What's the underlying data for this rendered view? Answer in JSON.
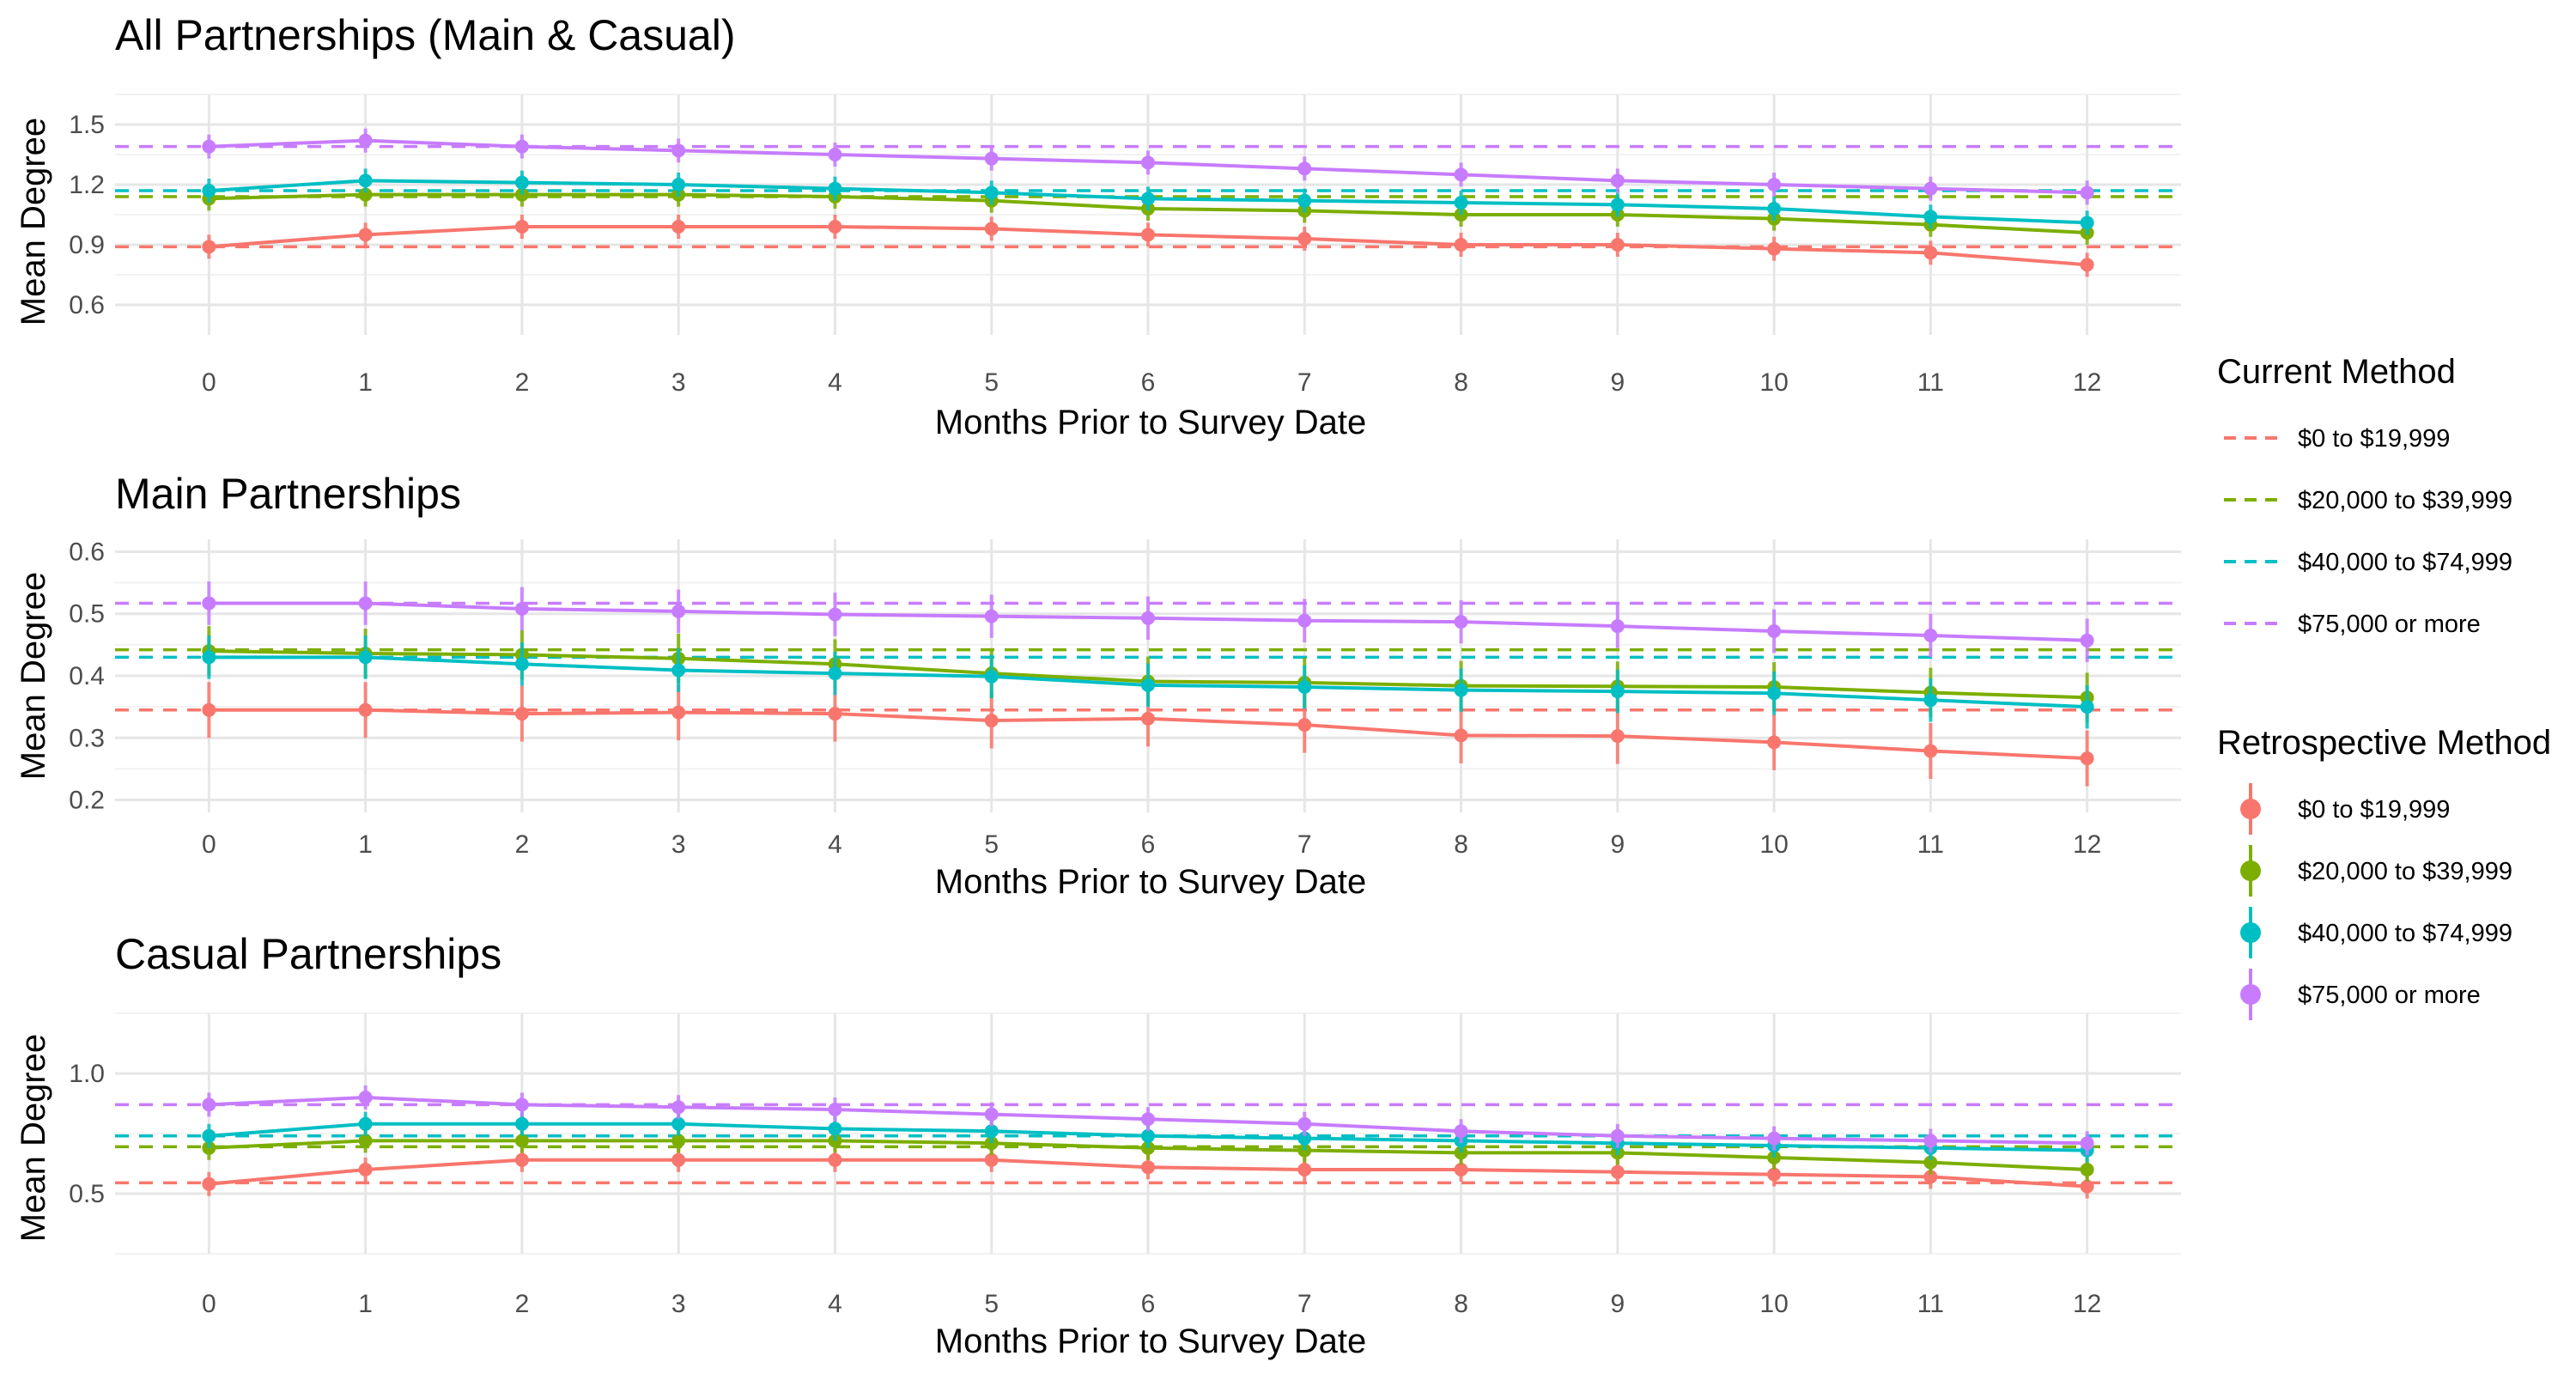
{
  "colors": {
    "$0 to $19,999": "#F8766D",
    "$20,000 to $39,999": "#7CAE00",
    "$40,000 to $74,999": "#00BFC4",
    "$75,000 or more": "#C77CFF"
  },
  "legend": {
    "current_title": "Current Method",
    "retro_title": "Retrospective Method",
    "groups": [
      "$0 to $19,999",
      "$20,000 to $39,999",
      "$40,000 to $74,999",
      "$75,000 or more"
    ]
  },
  "chart_data": [
    {
      "type": "line",
      "title": "All Partnerships (Main & Casual)",
      "xlabel": "Months Prior to Survey Date",
      "ylabel": "Mean Degree",
      "x": [
        0,
        1,
        2,
        3,
        4,
        5,
        6,
        7,
        8,
        9,
        10,
        11,
        12
      ],
      "ylim": [
        0.45,
        1.65
      ],
      "yticks": [
        0.6,
        0.9,
        1.2,
        1.5
      ],
      "ytick_labels": [
        "0.6",
        "0.9",
        "1.2",
        "1.5"
      ],
      "current": [
        {
          "name": "$0 to $19,999",
          "value": 0.89
        },
        {
          "name": "$20,000 to $39,999",
          "value": 1.14
        },
        {
          "name": "$40,000 to $74,999",
          "value": 1.17
        },
        {
          "name": "$75,000 or more",
          "value": 1.39
        }
      ],
      "series": [
        {
          "name": "$0 to $19,999",
          "values": [
            0.89,
            0.95,
            0.99,
            0.99,
            0.99,
            0.98,
            0.95,
            0.93,
            0.9,
            0.9,
            0.88,
            0.86,
            0.8
          ],
          "err": 0.06
        },
        {
          "name": "$20,000 to $39,999",
          "values": [
            1.13,
            1.15,
            1.15,
            1.15,
            1.14,
            1.12,
            1.08,
            1.07,
            1.05,
            1.05,
            1.03,
            1.0,
            0.96
          ],
          "err": 0.06
        },
        {
          "name": "$40,000 to $74,999",
          "values": [
            1.17,
            1.22,
            1.21,
            1.2,
            1.18,
            1.16,
            1.13,
            1.12,
            1.11,
            1.1,
            1.08,
            1.04,
            1.01
          ],
          "err": 0.06
        },
        {
          "name": "$75,000 or more",
          "values": [
            1.39,
            1.42,
            1.39,
            1.37,
            1.35,
            1.33,
            1.31,
            1.28,
            1.25,
            1.22,
            1.2,
            1.18,
            1.16
          ],
          "err": 0.06
        }
      ]
    },
    {
      "type": "line",
      "title": "Main Partnerships",
      "xlabel": "Months Prior to Survey Date",
      "ylabel": "Mean Degree",
      "x": [
        0,
        1,
        2,
        3,
        4,
        5,
        6,
        7,
        8,
        9,
        10,
        11,
        12
      ],
      "ylim": [
        0.18,
        0.62
      ],
      "yticks": [
        0.2,
        0.3,
        0.4,
        0.5,
        0.6
      ],
      "ytick_labels": [
        "0.2",
        "0.3",
        "0.4",
        "0.5",
        "0.6"
      ],
      "current": [
        {
          "name": "$0 to $19,999",
          "value": 0.345
        },
        {
          "name": "$20,000 to $39,999",
          "value": 0.442
        },
        {
          "name": "$40,000 to $74,999",
          "value": 0.43
        },
        {
          "name": "$75,000 or more",
          "value": 0.517
        }
      ],
      "series": [
        {
          "name": "$0 to $19,999",
          "values": [
            0.345,
            0.345,
            0.339,
            0.341,
            0.339,
            0.328,
            0.331,
            0.321,
            0.304,
            0.303,
            0.293,
            0.279,
            0.267
          ],
          "err": 0.045
        },
        {
          "name": "$20,000 to $39,999",
          "values": [
            0.44,
            0.436,
            0.434,
            0.428,
            0.419,
            0.404,
            0.391,
            0.389,
            0.384,
            0.383,
            0.382,
            0.373,
            0.365
          ],
          "err": 0.04
        },
        {
          "name": "$40,000 to $74,999",
          "values": [
            0.43,
            0.43,
            0.419,
            0.409,
            0.404,
            0.399,
            0.385,
            0.382,
            0.377,
            0.375,
            0.372,
            0.361,
            0.35
          ],
          "err": 0.035
        },
        {
          "name": "$75,000 or more",
          "values": [
            0.517,
            0.517,
            0.508,
            0.504,
            0.499,
            0.496,
            0.493,
            0.489,
            0.487,
            0.48,
            0.472,
            0.465,
            0.457
          ],
          "err": 0.035
        }
      ]
    },
    {
      "type": "line",
      "title": "Casual Partnerships",
      "xlabel": "Months Prior to Survey Date",
      "ylabel": "Mean Degree",
      "x": [
        0,
        1,
        2,
        3,
        4,
        5,
        6,
        7,
        8,
        9,
        10,
        11,
        12
      ],
      "ylim": [
        0.25,
        1.25
      ],
      "yticks": [
        0.5,
        1.0
      ],
      "ytick_labels": [
        "0.5",
        "1.0"
      ],
      "current": [
        {
          "name": "$0 to $19,999",
          "value": 0.545
        },
        {
          "name": "$20,000 to $39,999",
          "value": 0.695
        },
        {
          "name": "$40,000 to $74,999",
          "value": 0.74
        },
        {
          "name": "$75,000 or more",
          "value": 0.87
        }
      ],
      "series": [
        {
          "name": "$0 to $19,999",
          "values": [
            0.54,
            0.6,
            0.64,
            0.64,
            0.64,
            0.64,
            0.61,
            0.6,
            0.6,
            0.59,
            0.58,
            0.57,
            0.53
          ],
          "err": 0.05
        },
        {
          "name": "$20,000 to $39,999",
          "values": [
            0.69,
            0.72,
            0.72,
            0.72,
            0.72,
            0.71,
            0.69,
            0.68,
            0.67,
            0.67,
            0.65,
            0.63,
            0.6
          ],
          "err": 0.05
        },
        {
          "name": "$40,000 to $74,999",
          "values": [
            0.74,
            0.79,
            0.79,
            0.79,
            0.77,
            0.76,
            0.74,
            0.73,
            0.72,
            0.71,
            0.7,
            0.69,
            0.68
          ],
          "err": 0.05
        },
        {
          "name": "$75,000 or more",
          "values": [
            0.87,
            0.9,
            0.87,
            0.86,
            0.85,
            0.83,
            0.81,
            0.79,
            0.76,
            0.74,
            0.73,
            0.72,
            0.71
          ],
          "err": 0.05
        }
      ]
    }
  ]
}
